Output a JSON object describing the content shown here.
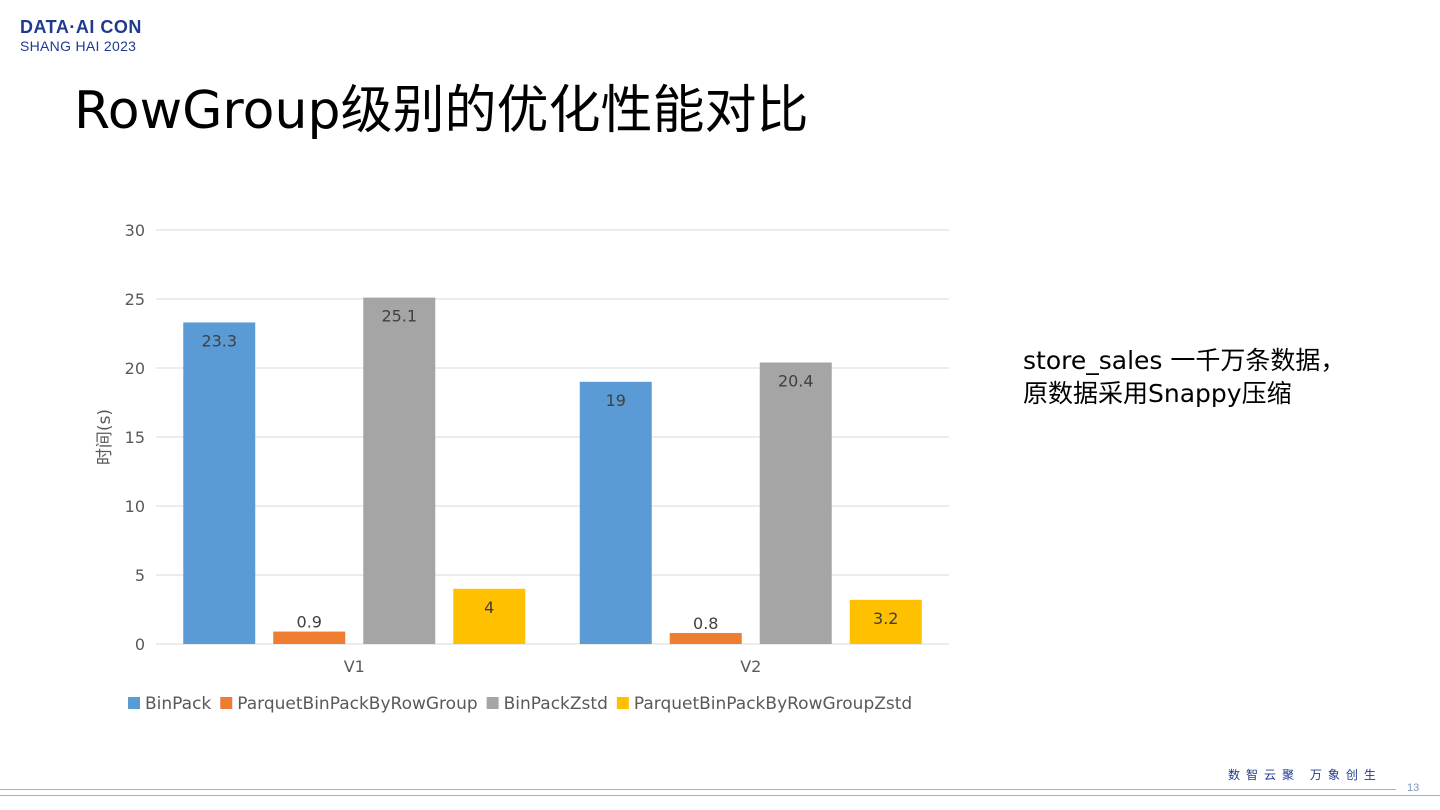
{
  "logo": {
    "line1": "DATA·AI CON",
    "line2": "SHANG HAI 2023"
  },
  "title": "RowGroup级别的优化性能对比",
  "note": {
    "line1": "store_sales 一千万条数据，",
    "line2": "原数据采用Snappy压缩"
  },
  "footer": {
    "slogan": "数智云聚  万象创生",
    "page_number": "13"
  },
  "chart_data": {
    "type": "bar",
    "categories": [
      "V1",
      "V2"
    ],
    "series": [
      {
        "name": "BinPack",
        "values": [
          23.3,
          19
        ],
        "color": "#5b9bd5"
      },
      {
        "name": "ParquetBinPackByRowGroup",
        "values": [
          0.9,
          0.8
        ],
        "color": "#ed7d31"
      },
      {
        "name": "BinPackZstd",
        "values": [
          25.1,
          20.4
        ],
        "color": "#a5a5a5"
      },
      {
        "name": "ParquetBinPackByRowGroupZstd",
        "values": [
          4,
          3.2
        ],
        "color": "#ffc000"
      }
    ],
    "ylabel": "时间(s)",
    "ylim": [
      0,
      30
    ],
    "yticks": [
      0,
      5,
      10,
      15,
      20,
      25,
      30
    ],
    "grid": true,
    "legend": "bottom"
  }
}
